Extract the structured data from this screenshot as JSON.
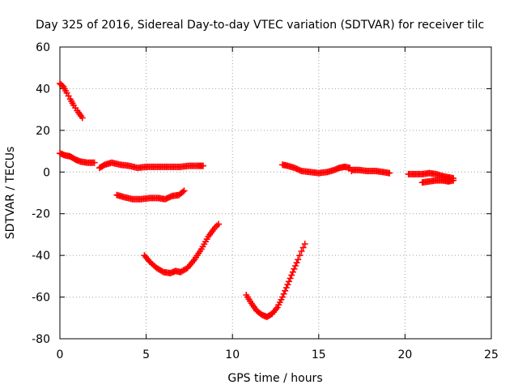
{
  "chart_data": {
    "type": "scatter",
    "title": "Day 325 of 2016, Sidereal Day-to-day VTEC variation (SDTVAR) for receiver tilc",
    "xlabel": "GPS time / hours",
    "ylabel": "SDTVAR / TECUs",
    "xlim": [
      0,
      25
    ],
    "ylim": [
      -80,
      60
    ],
    "xticks": [
      "0",
      "5",
      "10",
      "15",
      "20",
      "25"
    ],
    "yticks": [
      "60",
      "40",
      "20",
      "0",
      "-20",
      "-40",
      "-60",
      "-80"
    ],
    "xtick_values": [
      0,
      5,
      10,
      15,
      20,
      25
    ],
    "ytick_values": [
      60,
      40,
      20,
      0,
      -20,
      -40,
      -60,
      -80
    ],
    "grid": true,
    "marker": "+",
    "color": "#ff0000",
    "series": [
      {
        "segments": [
          [
            [
              0.0,
              42.5
            ],
            [
              0.2,
              41
            ],
            [
              0.4,
              38
            ],
            [
              0.6,
              35
            ],
            [
              0.8,
              32
            ],
            [
              1.0,
              29.5
            ],
            [
              1.3,
              26
            ]
          ],
          [
            [
              0.0,
              9
            ],
            [
              0.3,
              8
            ],
            [
              0.6,
              7.5
            ],
            [
              0.9,
              6
            ],
            [
              1.2,
              5
            ],
            [
              1.6,
              4.5
            ],
            [
              2.0,
              4.5
            ]
          ],
          [
            [
              2.3,
              2
            ],
            [
              2.6,
              3.5
            ],
            [
              3.0,
              4.5
            ],
            [
              3.5,
              3.5
            ],
            [
              4.0,
              3
            ],
            [
              4.5,
              2
            ],
            [
              5.0,
              2.5
            ],
            [
              5.5,
              2.5
            ],
            [
              6.0,
              2.5
            ],
            [
              6.5,
              2.5
            ],
            [
              7.0,
              2.5
            ],
            [
              7.5,
              3
            ],
            [
              8.0,
              3
            ],
            [
              8.3,
              3
            ]
          ],
          [
            [
              3.3,
              -11
            ],
            [
              3.7,
              -12
            ],
            [
              4.2,
              -13
            ],
            [
              4.7,
              -13
            ],
            [
              5.2,
              -12.5
            ],
            [
              5.7,
              -12.5
            ],
            [
              6.1,
              -13
            ],
            [
              6.5,
              -11.5
            ],
            [
              6.9,
              -11
            ],
            [
              7.2,
              -9
            ]
          ],
          [
            [
              4.9,
              -40
            ],
            [
              5.2,
              -43
            ],
            [
              5.6,
              -46
            ],
            [
              6.0,
              -48
            ],
            [
              6.4,
              -48.5
            ],
            [
              6.7,
              -47.5
            ],
            [
              7.0,
              -48
            ],
            [
              7.4,
              -46
            ],
            [
              7.8,
              -42
            ],
            [
              8.2,
              -37
            ],
            [
              8.6,
              -31
            ],
            [
              9.0,
              -26.5
            ],
            [
              9.2,
              -25
            ]
          ],
          [
            [
              10.8,
              -59
            ],
            [
              11.1,
              -63
            ],
            [
              11.4,
              -66.5
            ],
            [
              11.7,
              -68.5
            ],
            [
              12.0,
              -69.5
            ],
            [
              12.3,
              -68
            ],
            [
              12.6,
              -65
            ],
            [
              12.9,
              -60
            ],
            [
              13.2,
              -54
            ],
            [
              13.5,
              -48
            ],
            [
              13.8,
              -42
            ],
            [
              14.0,
              -38
            ],
            [
              14.2,
              -34.5
            ]
          ],
          [
            [
              12.9,
              3.5
            ],
            [
              13.2,
              3
            ],
            [
              13.6,
              2
            ],
            [
              14.0,
              0.5
            ],
            [
              14.5,
              0
            ],
            [
              15.0,
              -0.5
            ],
            [
              15.5,
              0
            ],
            [
              15.9,
              1
            ],
            [
              16.2,
              2
            ],
            [
              16.5,
              2.5
            ],
            [
              16.8,
              2
            ],
            [
              16.9,
              0.5
            ]
          ],
          [
            [
              16.9,
              1
            ],
            [
              17.3,
              1
            ],
            [
              17.8,
              0.5
            ],
            [
              18.3,
              0.5
            ],
            [
              18.7,
              0
            ],
            [
              19.1,
              -0.5
            ]
          ],
          [
            [
              20.2,
              -1
            ],
            [
              20.6,
              -1
            ],
            [
              21.0,
              -1
            ],
            [
              21.4,
              -0.5
            ],
            [
              21.8,
              -1
            ],
            [
              22.2,
              -2
            ],
            [
              22.5,
              -2.5
            ],
            [
              22.8,
              -3
            ]
          ],
          [
            [
              21.0,
              -5
            ],
            [
              21.4,
              -4.5
            ],
            [
              21.8,
              -4
            ],
            [
              22.2,
              -4
            ],
            [
              22.5,
              -4.5
            ],
            [
              22.8,
              -4
            ]
          ]
        ]
      }
    ]
  }
}
